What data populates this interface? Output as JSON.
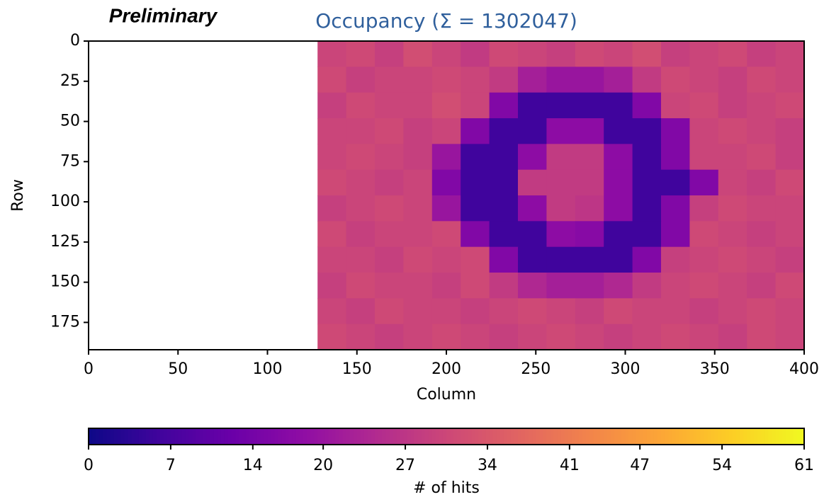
{
  "chart_data": {
    "type": "heatmap",
    "title": "Occupancy (Σ = 1302047)",
    "annotation": "Preliminary",
    "xlabel": "Column",
    "ylabel": "Row",
    "xlim": [
      0,
      400
    ],
    "ylim": [
      192,
      0
    ],
    "xticks": [
      0,
      50,
      100,
      150,
      200,
      250,
      300,
      350,
      400
    ],
    "yticks": [
      0,
      25,
      50,
      75,
      100,
      125,
      150,
      175
    ],
    "x_edges": [
      0,
      16,
      32,
      48,
      64,
      80,
      96,
      112,
      128,
      144,
      160,
      176,
      192,
      208,
      224,
      240,
      256,
      272,
      288,
      304,
      320,
      336,
      352,
      368,
      384,
      400
    ],
    "y_edges": [
      0,
      16,
      32,
      48,
      64,
      80,
      96,
      112,
      128,
      144,
      160,
      176,
      192
    ],
    "values": [
      [
        null,
        null,
        null,
        null,
        null,
        null,
        null,
        null,
        30,
        31,
        29,
        32,
        30,
        28,
        31,
        30,
        29,
        31,
        30,
        32,
        29,
        30,
        31,
        29,
        30
      ],
      [
        null,
        null,
        null,
        null,
        null,
        null,
        null,
        null,
        31,
        29,
        30,
        30,
        31,
        30,
        28,
        22,
        20,
        20,
        22,
        28,
        31,
        30,
        29,
        31,
        30
      ],
      [
        null,
        null,
        null,
        null,
        null,
        null,
        null,
        null,
        29,
        31,
        30,
        30,
        32,
        30,
        16,
        6,
        6,
        6,
        6,
        16,
        30,
        31,
        29,
        30,
        31
      ],
      [
        null,
        null,
        null,
        null,
        null,
        null,
        null,
        null,
        30,
        30,
        31,
        29,
        30,
        16,
        6,
        6,
        18,
        18,
        6,
        6,
        16,
        30,
        31,
        30,
        29
      ],
      [
        null,
        null,
        null,
        null,
        null,
        null,
        null,
        null,
        30,
        31,
        30,
        29,
        20,
        6,
        6,
        18,
        28,
        28,
        18,
        6,
        16,
        30,
        30,
        31,
        29
      ],
      [
        null,
        null,
        null,
        null,
        null,
        null,
        null,
        null,
        31,
        30,
        29,
        30,
        16,
        6,
        6,
        28,
        28,
        28,
        18,
        6,
        6,
        16,
        30,
        29,
        31
      ],
      [
        null,
        null,
        null,
        null,
        null,
        null,
        null,
        null,
        29,
        30,
        31,
        30,
        20,
        6,
        6,
        18,
        28,
        27,
        18,
        6,
        16,
        29,
        31,
        30,
        30
      ],
      [
        null,
        null,
        null,
        null,
        null,
        null,
        null,
        null,
        31,
        29,
        30,
        30,
        31,
        16,
        6,
        6,
        18,
        17,
        6,
        6,
        16,
        31,
        30,
        29,
        30
      ],
      [
        null,
        null,
        null,
        null,
        null,
        null,
        null,
        null,
        30,
        30,
        29,
        31,
        30,
        31,
        16,
        6,
        6,
        6,
        6,
        16,
        29,
        30,
        31,
        30,
        29
      ],
      [
        null,
        null,
        null,
        null,
        null,
        null,
        null,
        null,
        29,
        31,
        30,
        30,
        29,
        31,
        28,
        24,
        22,
        22,
        24,
        28,
        30,
        31,
        30,
        29,
        31
      ],
      [
        null,
        null,
        null,
        null,
        null,
        null,
        null,
        null,
        30,
        29,
        31,
        30,
        30,
        29,
        30,
        31,
        30,
        29,
        31,
        30,
        30,
        29,
        30,
        31,
        30
      ],
      [
        null,
        null,
        null,
        null,
        null,
        null,
        null,
        null,
        31,
        30,
        29,
        30,
        31,
        30,
        29,
        30,
        31,
        30,
        29,
        30,
        31,
        30,
        29,
        31,
        30
      ]
    ],
    "colormap": "plasma",
    "clim": [
      0,
      61
    ],
    "cticks": [
      0,
      7,
      14,
      20,
      27,
      34,
      41,
      47,
      54,
      61
    ],
    "clabel": "# of hits"
  }
}
